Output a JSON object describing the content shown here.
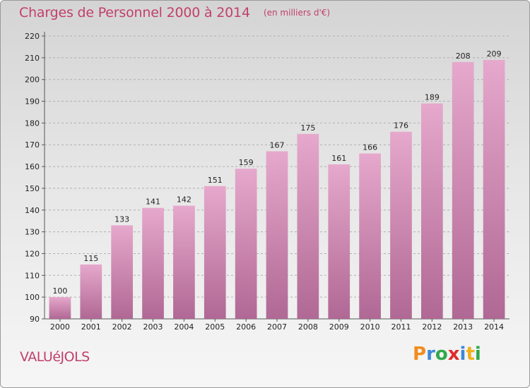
{
  "header": {
    "title": "Charges de Personnel 2000 à 2014",
    "subtitle": "(en milliers d'€)"
  },
  "commune": "VALUéJOLS",
  "logo": {
    "letters": [
      "P",
      "r",
      "o",
      "x",
      "i",
      "t",
      "i"
    ],
    "colors": [
      "#f08c1e",
      "#3d88d8",
      "#2fa84a",
      "#e02b2b",
      "#3d88d8",
      "#f0b01e",
      "#2fa84a"
    ]
  },
  "colors": {
    "accent": "#c2406a",
    "bar_top": "#e6a8cc",
    "bar_bottom": "#b06894"
  },
  "chart_data": {
    "type": "bar",
    "title": "Charges de Personnel 2000 à 2014",
    "subtitle": "(en milliers d'€)",
    "categories": [
      "2000",
      "2001",
      "2002",
      "2003",
      "2004",
      "2005",
      "2006",
      "2007",
      "2008",
      "2009",
      "2010",
      "2011",
      "2012",
      "2013",
      "2014"
    ],
    "values": [
      100,
      115,
      133,
      141,
      142,
      151,
      159,
      167,
      175,
      161,
      166,
      176,
      189,
      208,
      209
    ],
    "ylim": [
      90,
      220
    ],
    "yticks": [
      90,
      100,
      110,
      120,
      130,
      140,
      150,
      160,
      170,
      180,
      190,
      200,
      210,
      220
    ],
    "grid": true
  }
}
